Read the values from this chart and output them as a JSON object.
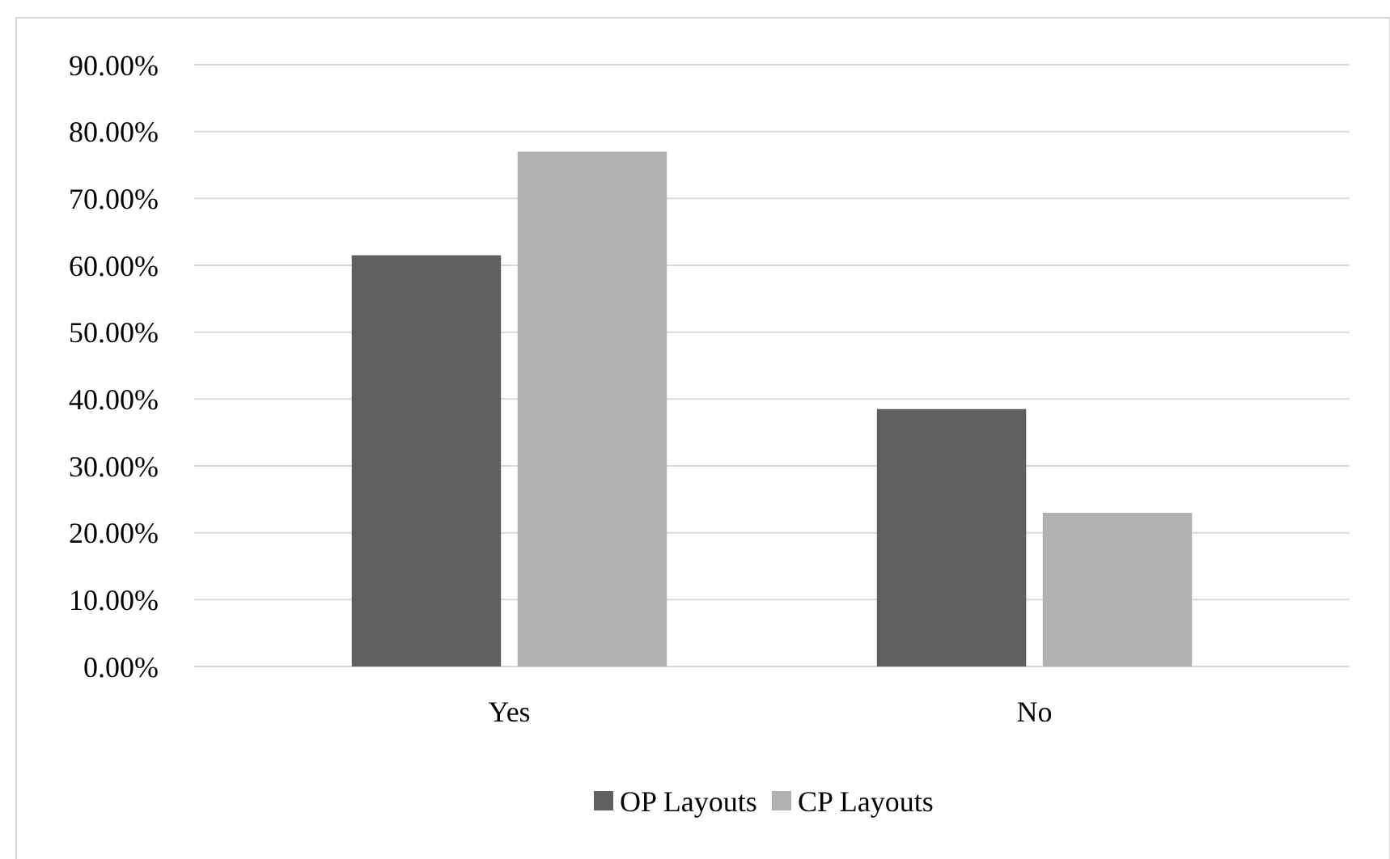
{
  "chart_data": {
    "type": "bar",
    "categories": [
      "Yes",
      "No"
    ],
    "series": [
      {
        "name": "OP Layouts",
        "color": "#5f5f5f",
        "values": [
          61.5,
          38.5
        ]
      },
      {
        "name": "CP Layouts",
        "color": "#b1b1b1",
        "values": [
          77,
          23
        ]
      }
    ],
    "ylim": [
      0,
      90
    ],
    "yticks": [
      {
        "value": 0,
        "label": "0.00%"
      },
      {
        "value": 10,
        "label": "10.00%"
      },
      {
        "value": 20,
        "label": "20.00%"
      },
      {
        "value": 30,
        "label": "30.00%"
      },
      {
        "value": 40,
        "label": "40.00%"
      },
      {
        "value": 50,
        "label": "50.00%"
      },
      {
        "value": 60,
        "label": "60.00%"
      },
      {
        "value": 70,
        "label": "70.00%"
      },
      {
        "value": 80,
        "label": "80.00%"
      },
      {
        "value": 90,
        "label": "90.00%"
      }
    ],
    "grid": "y",
    "legend": "bottom"
  }
}
